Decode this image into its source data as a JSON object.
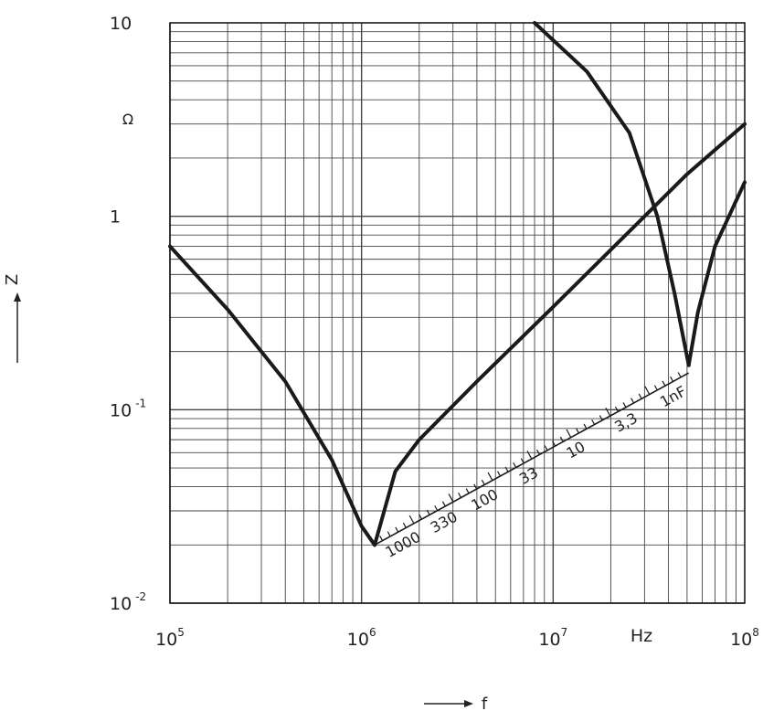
{
  "chart_data": {
    "type": "line",
    "x_scale": "log",
    "y_scale": "log",
    "xlim": [
      100000,
      100000000
    ],
    "ylim": [
      0.01,
      10
    ],
    "grid": true,
    "xlabel": "f",
    "ylabel": "Z",
    "x_unit": "Hz",
    "y_unit": "Ω",
    "x_ticks": [
      {
        "base": "10",
        "exp": "5",
        "value": 100000
      },
      {
        "base": "10",
        "exp": "6",
        "value": 1000000
      },
      {
        "base": "10",
        "exp": "7",
        "value": 10000000
      },
      {
        "base": "10",
        "exp": "8",
        "value": 100000000
      }
    ],
    "y_ticks": [
      {
        "base": "10",
        "exp": "-2",
        "value": 0.01
      },
      {
        "base": "10",
        "exp": "-1",
        "value": 0.1
      },
      {
        "base": "1",
        "exp": "",
        "value": 1
      },
      {
        "base": "10",
        "exp": "",
        "value": 10
      }
    ],
    "series": [
      {
        "points": [
          [
            100000,
            0.7
          ],
          [
            200000,
            0.33
          ],
          [
            400000,
            0.14
          ],
          [
            700000,
            0.055
          ],
          [
            1000000,
            0.025
          ],
          [
            1170000,
            0.02
          ]
        ]
      },
      {
        "points": [
          [
            1170000,
            0.02
          ],
          [
            1500000,
            0.048
          ],
          [
            2000000,
            0.07
          ],
          [
            4000000,
            0.14
          ],
          [
            10000000,
            0.34
          ],
          [
            30000000,
            1.0
          ],
          [
            50000000,
            1.65
          ],
          [
            100000000,
            3.0
          ]
        ]
      },
      {
        "points": [
          [
            8000000,
            10.0
          ],
          [
            15000000,
            5.6
          ],
          [
            25000000,
            2.7
          ],
          [
            35000000,
            1.0
          ],
          [
            43000000,
            0.4
          ],
          [
            51000000,
            0.17
          ]
        ]
      },
      {
        "points": [
          [
            51000000,
            0.17
          ],
          [
            57000000,
            0.32
          ],
          [
            70000000,
            0.7
          ],
          [
            100000000,
            1.5
          ]
        ]
      }
    ],
    "resonance_scale": {
      "from": [
        1170000,
        0.02
      ],
      "to": [
        51000000,
        0.155
      ],
      "labels": [
        "1000",
        "330",
        "100",
        "33",
        "10",
        "3,3",
        "1nF"
      ],
      "label_positions": [
        0.07,
        0.2,
        0.33,
        0.47,
        0.62,
        0.78,
        0.93
      ]
    }
  }
}
